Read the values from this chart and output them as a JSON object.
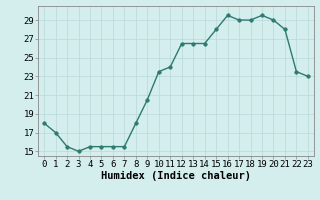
{
  "x": [
    0,
    1,
    2,
    3,
    4,
    5,
    6,
    7,
    8,
    9,
    10,
    11,
    12,
    13,
    14,
    15,
    16,
    17,
    18,
    19,
    20,
    21,
    22,
    23
  ],
  "y": [
    18.0,
    17.0,
    15.5,
    15.0,
    15.5,
    15.5,
    15.5,
    15.5,
    18.0,
    20.5,
    23.5,
    24.0,
    26.5,
    26.5,
    26.5,
    28.0,
    29.5,
    29.0,
    29.0,
    29.5,
    29.0,
    28.0,
    23.5,
    23.0
  ],
  "line_color": "#2d7a6e",
  "marker": "o",
  "markersize": 2.5,
  "linewidth": 1.0,
  "bg_color": "#d4eeee",
  "grid_color": "#b8d8d8",
  "xlabel": "Humidex (Indice chaleur)",
  "ylabel": "",
  "title": "",
  "ylim": [
    14.5,
    30.5
  ],
  "yticks": [
    15,
    17,
    19,
    21,
    23,
    25,
    27,
    29
  ],
  "xlim": [
    -0.5,
    23.5
  ],
  "xticks": [
    0,
    1,
    2,
    3,
    4,
    5,
    6,
    7,
    8,
    9,
    10,
    11,
    12,
    13,
    14,
    15,
    16,
    17,
    18,
    19,
    20,
    21,
    22,
    23
  ],
  "xlabel_fontsize": 7.5,
  "tick_fontsize": 6.5,
  "spine_color": "#888888"
}
